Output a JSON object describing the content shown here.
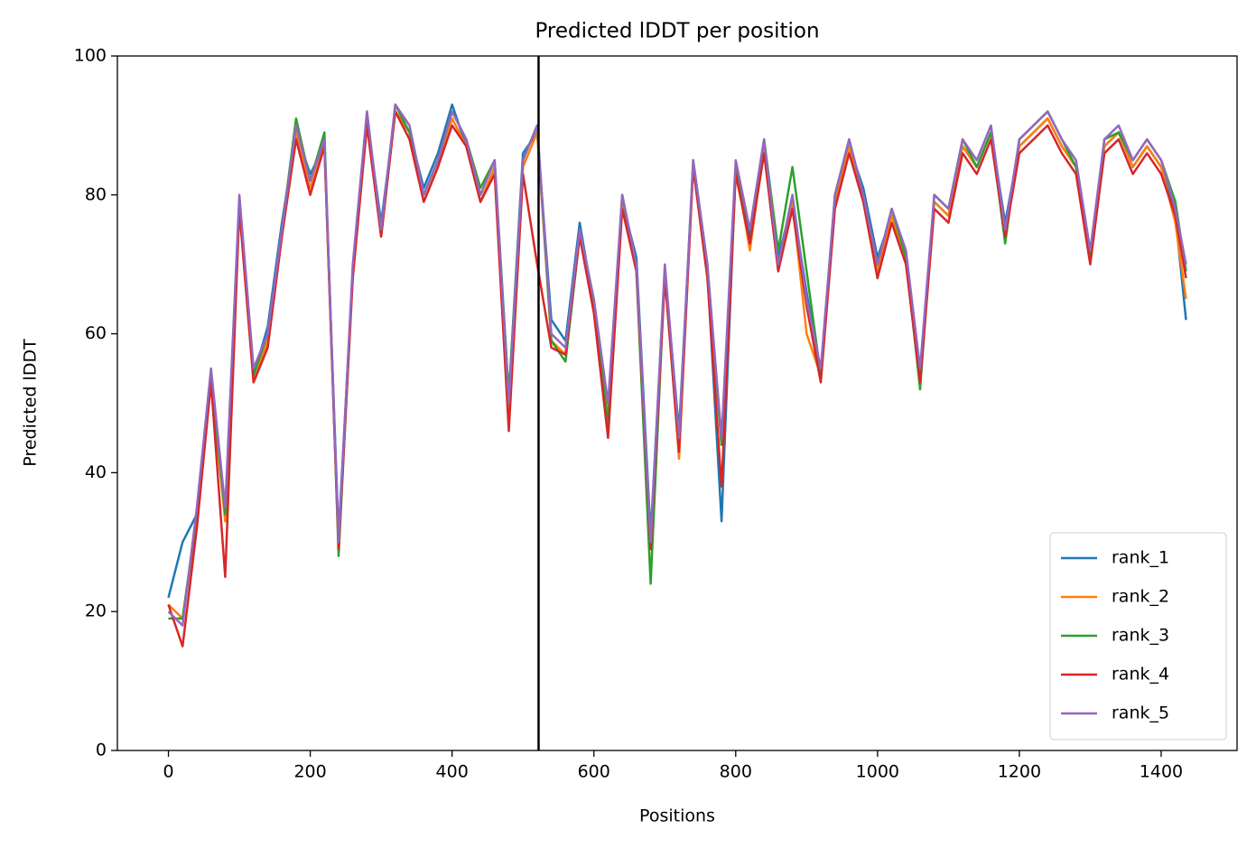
{
  "chart_data": {
    "type": "line",
    "title": "Predicted lDDT per position",
    "xlabel": "Positions",
    "ylabel": "Predicted lDDT",
    "x": [
      0,
      20,
      40,
      60,
      80,
      100,
      120,
      140,
      160,
      180,
      200,
      220,
      240,
      260,
      280,
      300,
      320,
      340,
      360,
      380,
      400,
      420,
      440,
      460,
      480,
      500,
      520,
      540,
      560,
      580,
      600,
      620,
      640,
      660,
      680,
      700,
      720,
      740,
      760,
      780,
      800,
      820,
      840,
      860,
      880,
      900,
      920,
      940,
      960,
      980,
      1000,
      1020,
      1040,
      1060,
      1080,
      1100,
      1120,
      1140,
      1160,
      1180,
      1200,
      1220,
      1240,
      1260,
      1280,
      1300,
      1320,
      1340,
      1360,
      1380,
      1400,
      1420,
      1435
    ],
    "series": [
      {
        "name": "rank_1",
        "color": "#1f77b4",
        "values": [
          22,
          30,
          34,
          54,
          34,
          79,
          54,
          61,
          76,
          89,
          83,
          87,
          31,
          69,
          91,
          76,
          92,
          89,
          81,
          86,
          93,
          87,
          79,
          84,
          51,
          86,
          89,
          62,
          59,
          76,
          64,
          49,
          79,
          71,
          31,
          69,
          46,
          84,
          69,
          33,
          84,
          74,
          87,
          71,
          79,
          66,
          54,
          79,
          87,
          81,
          71,
          77,
          71,
          54,
          79,
          77,
          87,
          84,
          89,
          76,
          87,
          89,
          91,
          87,
          84,
          71,
          87,
          89,
          84,
          87,
          84,
          77,
          62
        ]
      },
      {
        "name": "rank_2",
        "color": "#ff7f0e",
        "values": [
          21,
          19,
          33,
          53,
          33,
          78,
          53,
          59,
          74,
          89,
          81,
          87,
          29,
          69,
          91,
          74,
          92,
          89,
          79,
          84,
          91,
          87,
          79,
          84,
          49,
          84,
          89,
          59,
          57,
          74,
          64,
          49,
          79,
          69,
          29,
          69,
          42,
          84,
          69,
          44,
          84,
          72,
          87,
          69,
          79,
          60,
          54,
          79,
          87,
          79,
          69,
          77,
          71,
          54,
          79,
          77,
          87,
          84,
          89,
          74,
          87,
          89,
          91,
          87,
          84,
          71,
          87,
          89,
          84,
          87,
          84,
          76,
          65
        ]
      },
      {
        "name": "rank_3",
        "color": "#2ca02c",
        "values": [
          19,
          19,
          34,
          54,
          34,
          79,
          54,
          60,
          75,
          91,
          82,
          89,
          28,
          69,
          92,
          74,
          93,
          89,
          80,
          85,
          92,
          88,
          81,
          85,
          51,
          85,
          90,
          59,
          56,
          74,
          64,
          47,
          80,
          69,
          24,
          69,
          44,
          85,
          70,
          44,
          84,
          75,
          88,
          72,
          84,
          69,
          54,
          80,
          88,
          80,
          70,
          78,
          71,
          52,
          80,
          78,
          88,
          84,
          89,
          73,
          88,
          90,
          92,
          88,
          84,
          71,
          88,
          89,
          85,
          88,
          85,
          79,
          69
        ]
      },
      {
        "name": "rank_4",
        "color": "#d62728",
        "values": [
          21,
          15,
          32,
          53,
          25,
          78,
          53,
          58,
          74,
          88,
          80,
          87,
          29,
          68,
          90,
          74,
          92,
          88,
          79,
          84,
          90,
          87,
          79,
          83,
          46,
          83,
          70,
          58,
          57,
          74,
          63,
          45,
          78,
          69,
          29,
          68,
          43,
          84,
          68,
          38,
          83,
          73,
          86,
          69,
          78,
          64,
          53,
          78,
          86,
          79,
          68,
          76,
          70,
          53,
          78,
          76,
          86,
          83,
          88,
          74,
          86,
          88,
          90,
          86,
          83,
          70,
          86,
          88,
          83,
          86,
          83,
          77,
          68
        ]
      },
      {
        "name": "rank_5",
        "color": "#9467bd",
        "values": [
          20,
          18,
          35,
          55,
          35,
          80,
          55,
          60,
          75,
          90,
          82,
          88,
          30,
          70,
          92,
          75,
          93,
          90,
          80,
          85,
          92,
          88,
          80,
          85,
          50,
          85,
          90,
          60,
          58,
          75,
          65,
          50,
          80,
          70,
          30,
          70,
          45,
          85,
          70,
          45,
          85,
          75,
          88,
          70,
          80,
          65,
          55,
          80,
          88,
          80,
          70,
          78,
          72,
          55,
          80,
          78,
          88,
          85,
          90,
          75,
          88,
          90,
          92,
          88,
          85,
          72,
          88,
          90,
          85,
          88,
          85,
          78,
          70
        ]
      }
    ],
    "vline": 522,
    "xlim": [
      -72,
      1507
    ],
    "xticks": [
      0,
      200,
      400,
      600,
      800,
      1000,
      1200,
      1400
    ],
    "ylim": [
      0,
      100
    ],
    "yticks": [
      0,
      20,
      40,
      60,
      80,
      100
    ],
    "legend": "lower right"
  }
}
